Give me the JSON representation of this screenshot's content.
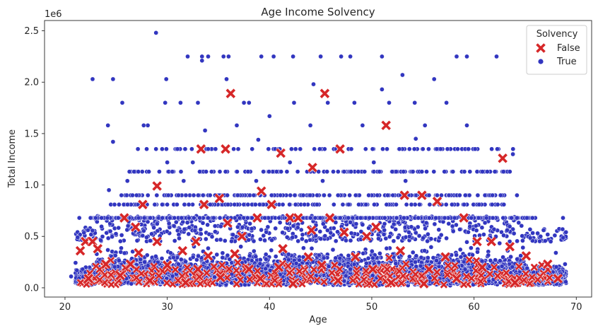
{
  "chart_data": {
    "type": "scatter",
    "title": "Age Income Solvency",
    "xlabel": "Age",
    "ylabel": "Total Income",
    "y_offset_label": "1e6",
    "xlim": [
      18,
      71.5
    ],
    "ylim": [
      -0.09,
      2.6
    ],
    "x_ticks": [
      20,
      30,
      40,
      50,
      60,
      70
    ],
    "x_tick_labels": [
      "20",
      "30",
      "40",
      "50",
      "60",
      "70"
    ],
    "y_ticks": [
      0.0,
      0.5,
      1.0,
      1.5,
      2.0,
      2.5
    ],
    "y_tick_labels": [
      "0.0",
      "0.5",
      "1.0",
      "1.5",
      "2.0",
      "2.5"
    ],
    "legend": {
      "title": "Solvency",
      "placement": "top-right",
      "entries": [
        {
          "label": "False",
          "marker": "X",
          "color": "#d62728"
        },
        {
          "label": "True",
          "marker": "circle",
          "color": "#3236c0"
        }
      ]
    },
    "series": [
      {
        "name": "True",
        "marker": "circle",
        "color": "#3236c0",
        "edge_color": "#ffffff",
        "points": [
          [
            28.9,
            2.48
          ],
          [
            22.7,
            2.03
          ],
          [
            24.7,
            2.03
          ],
          [
            29.9,
            2.03
          ],
          [
            32.0,
            2.25
          ],
          [
            33.4,
            2.25
          ],
          [
            34.0,
            2.25
          ],
          [
            35.5,
            2.25
          ],
          [
            36.0,
            2.25
          ],
          [
            39.2,
            2.25
          ],
          [
            40.4,
            2.25
          ],
          [
            42.3,
            2.25
          ],
          [
            45.0,
            2.25
          ],
          [
            47.0,
            2.25
          ],
          [
            47.9,
            2.25
          ],
          [
            51.0,
            2.25
          ],
          [
            58.3,
            2.25
          ],
          [
            59.3,
            2.25
          ],
          [
            62.2,
            2.25
          ],
          [
            33.4,
            2.21
          ],
          [
            53.0,
            2.07
          ],
          [
            35.8,
            2.03
          ],
          [
            56.1,
            2.03
          ],
          [
            44.3,
            1.98
          ],
          [
            51.0,
            1.93
          ],
          [
            25.6,
            1.8
          ],
          [
            29.8,
            1.8
          ],
          [
            31.3,
            1.8
          ],
          [
            33.0,
            1.8
          ],
          [
            37.5,
            1.8
          ],
          [
            38.0,
            1.8
          ],
          [
            42.4,
            1.8
          ],
          [
            45.7,
            1.8
          ],
          [
            48.3,
            1.8
          ],
          [
            51.7,
            1.8
          ],
          [
            54.2,
            1.8
          ],
          [
            57.3,
            1.8
          ],
          [
            40.0,
            1.67
          ],
          [
            24.2,
            1.58
          ],
          [
            27.7,
            1.58
          ],
          [
            28.1,
            1.58
          ],
          [
            36.8,
            1.58
          ],
          [
            44.0,
            1.58
          ],
          [
            49.1,
            1.58
          ],
          [
            55.2,
            1.58
          ],
          [
            59.3,
            1.58
          ],
          [
            33.7,
            1.53
          ],
          [
            24.7,
            1.42
          ],
          [
            38.9,
            1.44
          ],
          [
            54.3,
            1.45
          ],
          [
            34.0,
            1.35
          ],
          [
            28.9,
            1.35
          ],
          [
            31.0,
            1.35
          ],
          [
            36.5,
            1.35
          ],
          [
            38.3,
            1.35
          ],
          [
            41.0,
            1.35
          ],
          [
            43.0,
            1.35
          ],
          [
            46.5,
            1.35
          ],
          [
            48.0,
            1.35
          ],
          [
            52.7,
            1.35
          ],
          [
            55.0,
            1.35
          ],
          [
            58.4,
            1.35
          ],
          [
            60.1,
            1.35
          ],
          [
            63.8,
            1.3
          ],
          [
            30.0,
            1.22
          ],
          [
            32.5,
            1.22
          ],
          [
            42.0,
            1.22
          ],
          [
            50.2,
            1.22
          ],
          [
            26.3,
            1.13
          ],
          [
            28.2,
            1.13
          ],
          [
            30.5,
            1.13
          ],
          [
            33.8,
            1.13
          ],
          [
            35.7,
            1.13
          ],
          [
            37.9,
            1.13
          ],
          [
            39.4,
            1.13
          ],
          [
            41.7,
            1.13
          ],
          [
            44.8,
            1.13
          ],
          [
            47.3,
            1.13
          ],
          [
            49.3,
            1.13
          ],
          [
            52.0,
            1.13
          ],
          [
            54.9,
            1.13
          ],
          [
            57.1,
            1.13
          ],
          [
            59.6,
            1.13
          ],
          [
            61.3,
            1.13
          ],
          [
            63.5,
            1.13
          ],
          [
            26.1,
            1.04
          ],
          [
            31.6,
            1.04
          ],
          [
            38.7,
            1.04
          ],
          [
            45.2,
            1.04
          ],
          [
            53.3,
            1.04
          ],
          [
            24.3,
            0.95
          ],
          [
            27.0,
            0.9
          ],
          [
            30.1,
            0.9
          ],
          [
            33.5,
            0.9
          ],
          [
            36.9,
            0.9
          ],
          [
            40.2,
            0.9
          ],
          [
            43.3,
            0.9
          ],
          [
            46.7,
            0.9
          ],
          [
            49.7,
            0.9
          ],
          [
            52.8,
            0.9
          ],
          [
            55.6,
            0.9
          ],
          [
            58.6,
            0.9
          ],
          [
            61.8,
            0.9
          ],
          [
            64.2,
            0.9
          ],
          [
            21.4,
            0.68
          ],
          [
            22.5,
            0.68
          ],
          [
            23.0,
            0.68
          ],
          [
            25.2,
            0.68
          ],
          [
            68.7,
            0.68
          ],
          [
            66.8,
            0.56
          ],
          [
            67.5,
            0.45
          ],
          [
            68.0,
            0.34
          ],
          [
            20.6,
            0.11
          ],
          [
            68.9,
            0.23
          ]
        ]
      },
      {
        "name": "False",
        "marker": "X",
        "color": "#d62728",
        "edge_color": "#ffffff",
        "points": [
          [
            36.2,
            1.89
          ],
          [
            45.4,
            1.89
          ],
          [
            51.4,
            1.58
          ],
          [
            33.3,
            1.35
          ],
          [
            35.7,
            1.35
          ],
          [
            46.9,
            1.35
          ],
          [
            41.1,
            1.31
          ],
          [
            62.8,
            1.26
          ],
          [
            44.2,
            1.17
          ],
          [
            29.0,
            0.99
          ],
          [
            39.2,
            0.94
          ],
          [
            35.1,
            0.87
          ],
          [
            53.2,
            0.9
          ],
          [
            54.9,
            0.9
          ],
          [
            40.2,
            0.81
          ],
          [
            33.6,
            0.81
          ],
          [
            27.6,
            0.81
          ],
          [
            56.4,
            0.84
          ],
          [
            25.8,
            0.68
          ],
          [
            38.8,
            0.68
          ],
          [
            42.0,
            0.68
          ],
          [
            42.8,
            0.68
          ],
          [
            45.9,
            0.68
          ],
          [
            59.0,
            0.68
          ],
          [
            26.9,
            0.59
          ],
          [
            35.9,
            0.63
          ],
          [
            50.4,
            0.59
          ],
          [
            22.0,
            0.45
          ],
          [
            22.7,
            0.45
          ],
          [
            29.0,
            0.45
          ],
          [
            32.8,
            0.45
          ],
          [
            37.3,
            0.5
          ],
          [
            44.1,
            0.56
          ],
          [
            47.3,
            0.54
          ],
          [
            49.5,
            0.5
          ],
          [
            60.3,
            0.45
          ],
          [
            61.7,
            0.45
          ],
          [
            63.5,
            0.4
          ],
          [
            21.5,
            0.36
          ],
          [
            23.2,
            0.38
          ],
          [
            27.2,
            0.34
          ],
          [
            31.5,
            0.36
          ],
          [
            34.0,
            0.31
          ],
          [
            36.6,
            0.33
          ],
          [
            41.3,
            0.38
          ],
          [
            43.8,
            0.3
          ],
          [
            48.4,
            0.3
          ],
          [
            52.8,
            0.36
          ],
          [
            57.2,
            0.3
          ],
          [
            65.1,
            0.31
          ],
          [
            24.0,
            0.23
          ],
          [
            26.4,
            0.23
          ],
          [
            30.0,
            0.22
          ],
          [
            33.0,
            0.18
          ],
          [
            38.0,
            0.18
          ],
          [
            40.9,
            0.2
          ],
          [
            45.1,
            0.22
          ],
          [
            50.1,
            0.18
          ],
          [
            55.6,
            0.18
          ],
          [
            60.8,
            0.2
          ],
          [
            67.2,
            0.23
          ],
          [
            22.3,
            0.09
          ],
          [
            25.4,
            0.12
          ],
          [
            28.3,
            0.07
          ],
          [
            31.8,
            0.05
          ],
          [
            35.2,
            0.1
          ],
          [
            39.1,
            0.09
          ],
          [
            42.3,
            0.04
          ],
          [
            46.7,
            0.07
          ],
          [
            51.9,
            0.05
          ],
          [
            55.1,
            0.04
          ],
          [
            58.3,
            0.09
          ],
          [
            64.0,
            0.05
          ],
          [
            68.2,
            0.09
          ]
        ]
      }
    ]
  }
}
